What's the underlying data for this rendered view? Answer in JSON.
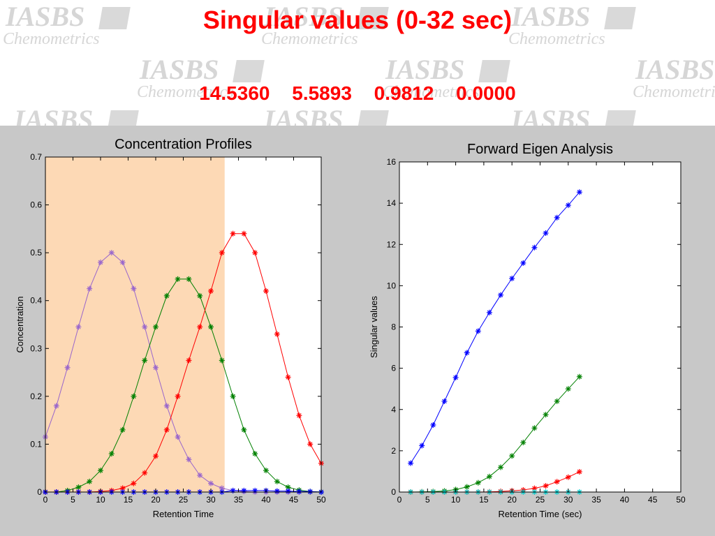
{
  "header": {
    "title": "Singular values  (0-32 sec)",
    "values": [
      "14.5360",
      "5.5893",
      "0.9812",
      "0.0000"
    ],
    "watermark_line1": "IASBS",
    "watermark_line2": "Chemometrics"
  },
  "colors": {
    "title": "#ff0000",
    "figure_bg": "#c8c8c8",
    "window_shade": "#fdd9b5",
    "blue": "#0000ff",
    "green": "#008000",
    "red": "#ff0000",
    "purple": "#9966cc",
    "cyan": "#00cccc"
  },
  "chart_data": [
    {
      "type": "line",
      "title": "Concentration Profiles",
      "xlabel": "Retention Time",
      "ylabel": "Concentration",
      "xlim": [
        0,
        50
      ],
      "ylim": [
        0,
        0.7
      ],
      "xticks": [
        0,
        5,
        10,
        15,
        20,
        25,
        30,
        35,
        40,
        45,
        50
      ],
      "yticks": [
        0,
        0.1,
        0.2,
        0.3,
        0.4,
        0.5,
        0.6,
        0.7
      ],
      "shaded_region": [
        0,
        32.5
      ],
      "x": [
        0,
        2,
        4,
        6,
        8,
        10,
        12,
        14,
        16,
        18,
        20,
        22,
        24,
        26,
        28,
        30,
        32,
        34,
        36,
        38,
        40,
        42,
        44,
        46,
        48,
        50
      ],
      "series": [
        {
          "color": "#9966cc",
          "values": [
            0.115,
            0.18,
            0.26,
            0.345,
            0.425,
            0.48,
            0.5,
            0.48,
            0.425,
            0.345,
            0.26,
            0.18,
            0.115,
            0.068,
            0.035,
            0.018,
            0.008,
            0.003,
            0.001,
            0,
            0,
            0,
            0,
            0,
            0,
            0
          ]
        },
        {
          "color": "#008000",
          "values": [
            0,
            0,
            0.003,
            0.01,
            0.022,
            0.045,
            0.08,
            0.13,
            0.2,
            0.275,
            0.345,
            0.41,
            0.445,
            0.445,
            0.41,
            0.345,
            0.275,
            0.2,
            0.13,
            0.08,
            0.045,
            0.022,
            0.01,
            0.004,
            0.001,
            0
          ]
        },
        {
          "color": "#ff0000",
          "values": [
            0,
            0,
            0,
            0,
            0,
            0.001,
            0.003,
            0.008,
            0.018,
            0.04,
            0.075,
            0.13,
            0.2,
            0.275,
            0.345,
            0.42,
            0.5,
            0.54,
            0.54,
            0.5,
            0.42,
            0.33,
            0.24,
            0.16,
            0.1,
            0.06
          ]
        },
        {
          "color": "#0000ff",
          "values": [
            0,
            0,
            0,
            0,
            0,
            0,
            0,
            0,
            0,
            0,
            0,
            0,
            0,
            0,
            0,
            0,
            0,
            0.003,
            0.003,
            0.003,
            0.003,
            0.002,
            0.002,
            0.001,
            0.001,
            0
          ]
        }
      ]
    },
    {
      "type": "line",
      "title": "Forward Eigen Analysis",
      "xlabel": "Retention Time (sec)",
      "ylabel": "Singular values",
      "xlim": [
        0,
        50
      ],
      "ylim": [
        0,
        16
      ],
      "xticks": [
        0,
        5,
        10,
        15,
        20,
        25,
        30,
        35,
        40,
        45,
        50
      ],
      "yticks": [
        0,
        2,
        4,
        6,
        8,
        10,
        12,
        14,
        16
      ],
      "x": [
        2,
        4,
        6,
        8,
        10,
        12,
        14,
        16,
        18,
        20,
        22,
        24,
        26,
        28,
        30,
        32
      ],
      "series": [
        {
          "color": "#0000ff",
          "values": [
            1.4,
            2.25,
            3.25,
            4.4,
            5.55,
            6.75,
            7.8,
            8.7,
            9.55,
            10.35,
            11.1,
            11.85,
            12.55,
            13.3,
            13.9,
            14.536
          ]
        },
        {
          "color": "#008000",
          "values": [
            0,
            0.01,
            0.02,
            0.05,
            0.12,
            0.25,
            0.45,
            0.75,
            1.2,
            1.75,
            2.4,
            3.1,
            3.75,
            4.4,
            5.0,
            5.5893
          ]
        },
        {
          "color": "#ff0000",
          "values": [
            0,
            0,
            0,
            0,
            0,
            0,
            0,
            0.01,
            0.03,
            0.06,
            0.1,
            0.18,
            0.3,
            0.5,
            0.72,
            0.9812
          ]
        },
        {
          "color": "#00cccc",
          "values": [
            0,
            0,
            0,
            0,
            0,
            0,
            0,
            0,
            0,
            0,
            0,
            0,
            0,
            0,
            0,
            0
          ]
        }
      ]
    }
  ]
}
